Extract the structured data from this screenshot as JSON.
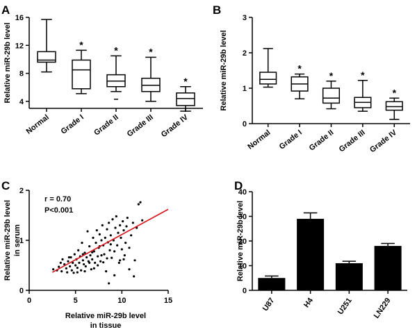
{
  "chart_data": [
    {
      "panel": "A",
      "type": "box",
      "ylabel": "Relative miR-29b  level",
      "ylim": [
        3,
        16
      ],
      "yticks": [
        4,
        8,
        12,
        16
      ],
      "categories": [
        "Normal",
        "Grade I",
        "Grade II",
        "Grade III",
        "Grade IV"
      ],
      "boxes": [
        {
          "min": 8.2,
          "q1": 9.6,
          "median": 9.9,
          "q3": 11.1,
          "max": 15.7,
          "outliers": []
        },
        {
          "min": 5.1,
          "q1": 5.8,
          "median": 8.5,
          "q3": 9.9,
          "max": 11.3,
          "outliers": []
        },
        {
          "min": 5.4,
          "q1": 6.1,
          "median": 6.9,
          "q3": 7.8,
          "max": 10.5,
          "outliers": [
            4.3
          ]
        },
        {
          "min": 4.0,
          "q1": 5.4,
          "median": 6.3,
          "q3": 7.3,
          "max": 10.3,
          "outliers": []
        },
        {
          "min": 2.6,
          "q1": 3.4,
          "median": 4.4,
          "q3": 5.2,
          "max": 6.1,
          "outliers": []
        }
      ],
      "significance": [
        "",
        "*",
        "*",
        "*",
        "*"
      ]
    },
    {
      "panel": "B",
      "type": "box",
      "ylabel": "Relative miR-29b  level",
      "ylim": [
        0,
        3
      ],
      "yticks": [
        0,
        1,
        2,
        3
      ],
      "categories": [
        "Normal",
        "Grade I",
        "Grade II",
        "Grade III",
        "Grade IV"
      ],
      "boxes": [
        {
          "min": 1.03,
          "q1": 1.12,
          "median": 1.25,
          "q3": 1.45,
          "max": 2.12,
          "outliers": []
        },
        {
          "min": 0.7,
          "q1": 0.92,
          "median": 1.12,
          "q3": 1.32,
          "max": 1.4,
          "outliers": []
        },
        {
          "min": 0.42,
          "q1": 0.58,
          "median": 0.72,
          "q3": 1.0,
          "max": 1.2,
          "outliers": []
        },
        {
          "min": 0.35,
          "q1": 0.45,
          "median": 0.6,
          "q3": 0.74,
          "max": 1.22,
          "outliers": []
        },
        {
          "min": 0.12,
          "q1": 0.38,
          "median": 0.48,
          "q3": 0.62,
          "max": 0.72,
          "outliers": []
        }
      ],
      "significance": [
        "",
        "*",
        "*",
        "*",
        "*"
      ]
    },
    {
      "panel": "C",
      "type": "scatter",
      "xlabel_line1": "Relative miR-29b level",
      "xlabel_line2": "in tissue",
      "ylabel_line1": "Relative miR-29b level",
      "ylabel_line2": "in serum",
      "xlim": [
        0,
        15
      ],
      "ylim": [
        0,
        2
      ],
      "xticks": [
        0,
        5,
        10,
        15
      ],
      "yticks": [
        0,
        1,
        2
      ],
      "annotation_r": "r = 0.70",
      "annotation_p": "P<0.001",
      "regression": {
        "x": [
          2.5,
          15
        ],
        "y": [
          0.36,
          1.62
        ],
        "color": "#d9141c"
      },
      "points": [
        [
          2.6,
          0.42
        ],
        [
          3.0,
          0.4
        ],
        [
          3.2,
          0.47
        ],
        [
          3.5,
          0.38
        ],
        [
          3.6,
          0.62
        ],
        [
          3.8,
          0.52
        ],
        [
          4.0,
          0.44
        ],
        [
          4.1,
          0.36
        ],
        [
          4.2,
          0.58
        ],
        [
          4.4,
          0.48
        ],
        [
          4.5,
          0.66
        ],
        [
          4.6,
          0.4
        ],
        [
          4.7,
          0.55
        ],
        [
          4.8,
          0.35
        ],
        [
          4.9,
          0.72
        ],
        [
          5.0,
          0.5
        ],
        [
          5.1,
          0.62
        ],
        [
          5.2,
          0.45
        ],
        [
          5.3,
          0.8
        ],
        [
          5.4,
          0.55
        ],
        [
          5.5,
          0.68
        ],
        [
          5.6,
          0.4
        ],
        [
          5.7,
          0.95
        ],
        [
          5.8,
          0.6
        ],
        [
          5.9,
          0.52
        ],
        [
          6.0,
          0.75
        ],
        [
          6.1,
          0.48
        ],
        [
          6.2,
          0.66
        ],
        [
          6.3,
          1.18
        ],
        [
          6.4,
          0.58
        ],
        [
          6.5,
          0.88
        ],
        [
          6.6,
          0.7
        ],
        [
          6.7,
          0.42
        ],
        [
          6.8,
          0.62
        ],
        [
          6.9,
          1.05
        ],
        [
          7.0,
          0.78
        ],
        [
          7.1,
          0.55
        ],
        [
          7.2,
          0.95
        ],
        [
          7.3,
          1.2
        ],
        [
          7.4,
          0.68
        ],
        [
          7.5,
          0.85
        ],
        [
          7.6,
          1.12
        ],
        [
          7.7,
          0.58
        ],
        [
          7.8,
          1.0
        ],
        [
          7.9,
          1.3
        ],
        [
          8.0,
          0.9
        ],
        [
          8.1,
          0.72
        ],
        [
          8.2,
          1.05
        ],
        [
          8.3,
          0.38
        ],
        [
          8.4,
          1.22
        ],
        [
          8.5,
          0.96
        ],
        [
          8.6,
          1.35
        ],
        [
          8.7,
          0.8
        ],
        [
          8.8,
          1.1
        ],
        [
          8.9,
          0.65
        ],
        [
          9.0,
          1.42
        ],
        [
          9.1,
          1.0
        ],
        [
          9.2,
          0.78
        ],
        [
          9.3,
          1.25
        ],
        [
          9.4,
          1.48
        ],
        [
          9.5,
          0.9
        ],
        [
          9.6,
          1.15
        ],
        [
          9.7,
          0.55
        ],
        [
          9.8,
          1.3
        ],
        [
          9.9,
          1.05
        ],
        [
          10.0,
          0.82
        ],
        [
          10.1,
          1.38
        ],
        [
          10.2,
          1.2
        ],
        [
          10.3,
          0.7
        ],
        [
          10.4,
          0.95
        ],
        [
          10.5,
          1.28
        ],
        [
          10.6,
          1.45
        ],
        [
          10.8,
          0.85
        ],
        [
          11.0,
          1.1
        ],
        [
          11.2,
          1.35
        ],
        [
          11.4,
          0.6
        ],
        [
          11.6,
          1.25
        ],
        [
          11.8,
          1.72
        ],
        [
          12.0,
          1.76
        ],
        [
          12.2,
          1.4
        ],
        [
          5.2,
          0.36
        ],
        [
          6.0,
          0.38
        ],
        [
          7.0,
          0.44
        ],
        [
          8.6,
          0.14
        ],
        [
          9.2,
          0.3
        ],
        [
          10.2,
          0.62
        ],
        [
          10.8,
          0.42
        ],
        [
          11.3,
          0.28
        ],
        [
          6.5,
          0.55
        ],
        [
          7.4,
          0.5
        ],
        [
          8.0,
          0.56
        ],
        [
          5.8,
          0.72
        ],
        [
          4.3,
          0.66
        ],
        [
          3.4,
          0.55
        ],
        [
          9.8,
          0.6
        ],
        [
          8.4,
          0.64
        ],
        [
          7.8,
          0.7
        ],
        [
          6.8,
          0.76
        ],
        [
          7.6,
          0.88
        ],
        [
          8.8,
          0.92
        ]
      ]
    },
    {
      "panel": "D",
      "type": "bar",
      "ylabel": "Relative miR-29b  level",
      "ylim": [
        0,
        40
      ],
      "yticks": [
        0,
        10,
        20,
        30,
        40
      ],
      "categories": [
        "U87",
        "H4",
        "U251",
        "LN229"
      ],
      "values": [
        5.0,
        29.0,
        11.0,
        18.0
      ],
      "errors": [
        0.8,
        2.4,
        0.8,
        1.0
      ],
      "bar_color": "#000000"
    }
  ]
}
